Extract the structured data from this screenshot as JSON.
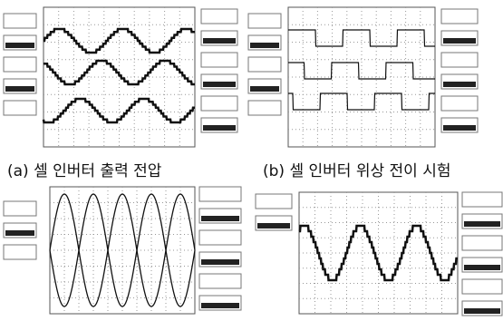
{
  "captions": [
    "(a) 셀 인버터 출력 전압",
    "(b) 셀 인버터 위상 전이 시험"
  ]
}
